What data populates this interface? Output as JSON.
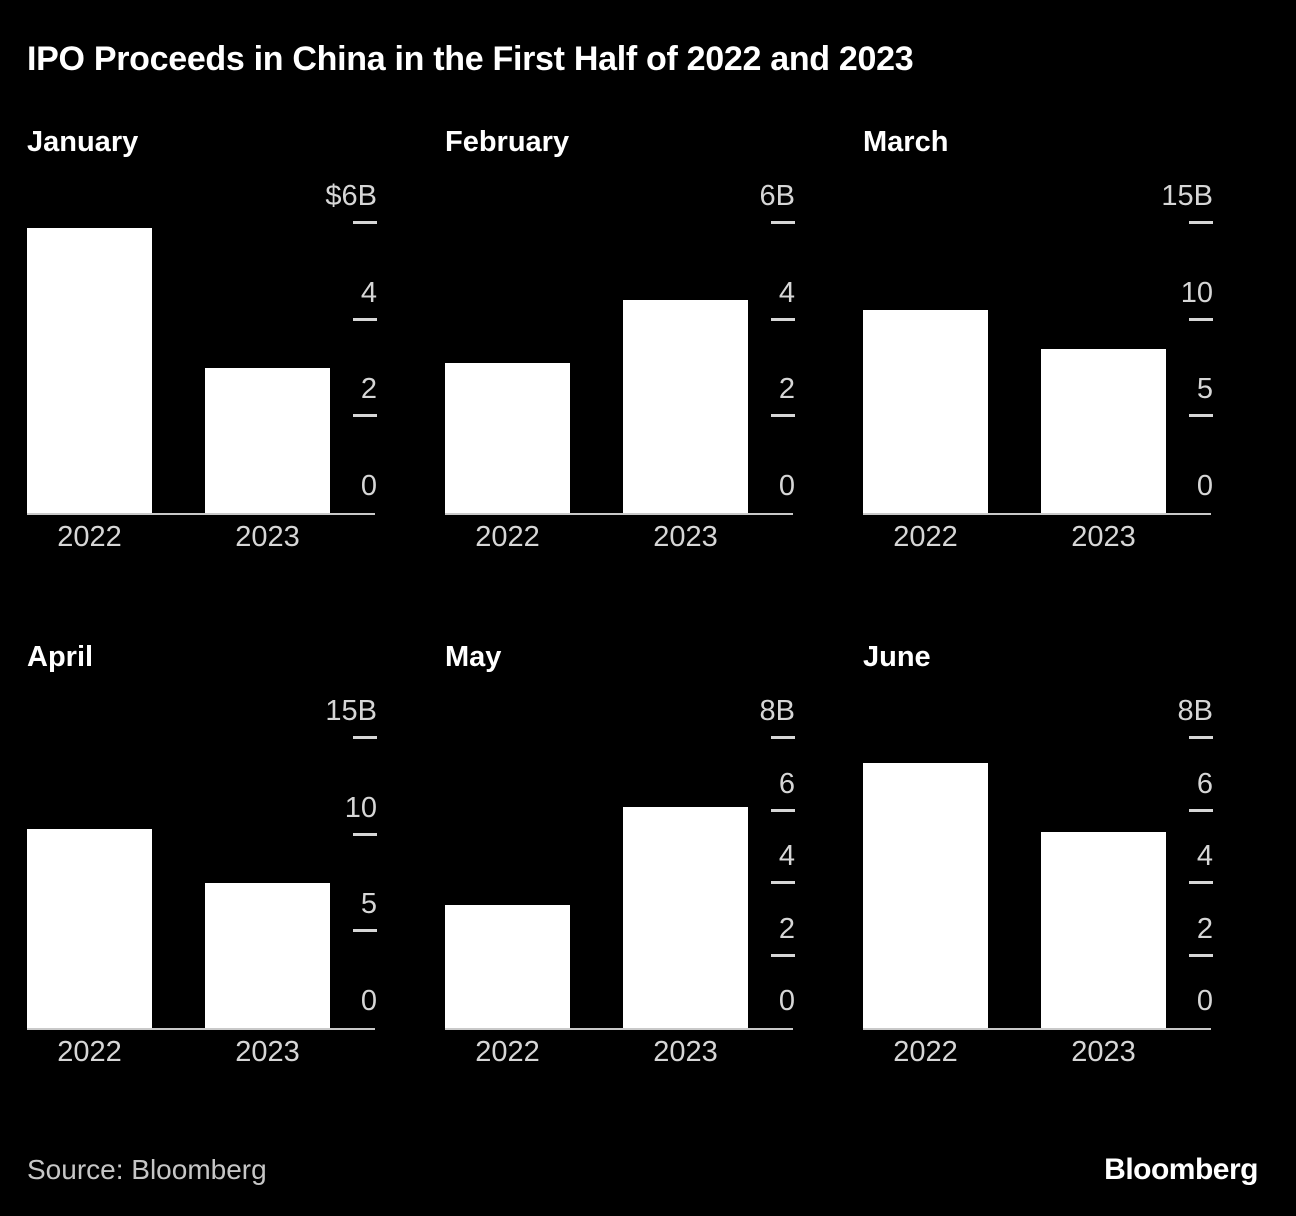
{
  "title": "IPO Proceeds in China in the First Half of 2022 and 2023",
  "source": "Source: Bloomberg",
  "brand": "Bloomberg",
  "colors": {
    "background": "#000000",
    "bar": "#ffffff",
    "title_text": "#ffffff",
    "axis_text": "#d6d6d6",
    "axis_line": "#c9c9c9"
  },
  "chart_data": [
    {
      "type": "bar",
      "title": "January",
      "categories": [
        "2022",
        "2023"
      ],
      "values": [
        5.9,
        3.0
      ],
      "ylim": [
        0,
        6
      ],
      "grid": false,
      "axis_side": "right",
      "ticks": [
        {
          "label": "$6B",
          "value": 6
        },
        {
          "label": "4",
          "value": 4
        },
        {
          "label": "2",
          "value": 2
        },
        {
          "label": "0",
          "value": 0
        }
      ]
    },
    {
      "type": "bar",
      "title": "February",
      "categories": [
        "2022",
        "2023"
      ],
      "values": [
        3.1,
        4.4
      ],
      "ylim": [
        0,
        6
      ],
      "grid": false,
      "axis_side": "right",
      "ticks": [
        {
          "label": "6B",
          "value": 6
        },
        {
          "label": "4",
          "value": 4
        },
        {
          "label": "2",
          "value": 2
        },
        {
          "label": "0",
          "value": 0
        }
      ]
    },
    {
      "type": "bar",
      "title": "March",
      "categories": [
        "2022",
        "2023"
      ],
      "values": [
        10.5,
        8.5
      ],
      "ylim": [
        0,
        15
      ],
      "grid": false,
      "axis_side": "right",
      "ticks": [
        {
          "label": "15B",
          "value": 15
        },
        {
          "label": "10",
          "value": 10
        },
        {
          "label": "5",
          "value": 5
        },
        {
          "label": "0",
          "value": 0
        }
      ]
    },
    {
      "type": "bar",
      "title": "April",
      "categories": [
        "2022",
        "2023"
      ],
      "values": [
        10.3,
        7.5
      ],
      "ylim": [
        0,
        15
      ],
      "grid": false,
      "axis_side": "right",
      "ticks": [
        {
          "label": "15B",
          "value": 15
        },
        {
          "label": "10",
          "value": 10
        },
        {
          "label": "5",
          "value": 5
        },
        {
          "label": "0",
          "value": 0
        }
      ]
    },
    {
      "type": "bar",
      "title": "May",
      "categories": [
        "2022",
        "2023"
      ],
      "values": [
        3.4,
        6.1
      ],
      "ylim": [
        0,
        8
      ],
      "grid": false,
      "axis_side": "right",
      "ticks": [
        {
          "label": "8B",
          "value": 8
        },
        {
          "label": "6",
          "value": 6
        },
        {
          "label": "4",
          "value": 4
        },
        {
          "label": "2",
          "value": 2
        },
        {
          "label": "0",
          "value": 0
        }
      ]
    },
    {
      "type": "bar",
      "title": "June",
      "categories": [
        "2022",
        "2023"
      ],
      "values": [
        7.3,
        5.4
      ],
      "ylim": [
        0,
        8
      ],
      "grid": false,
      "axis_side": "right",
      "ticks": [
        {
          "label": "8B",
          "value": 8
        },
        {
          "label": "6",
          "value": 6
        },
        {
          "label": "4",
          "value": 4
        },
        {
          "label": "2",
          "value": 2
        },
        {
          "label": "0",
          "value": 0
        }
      ]
    }
  ]
}
